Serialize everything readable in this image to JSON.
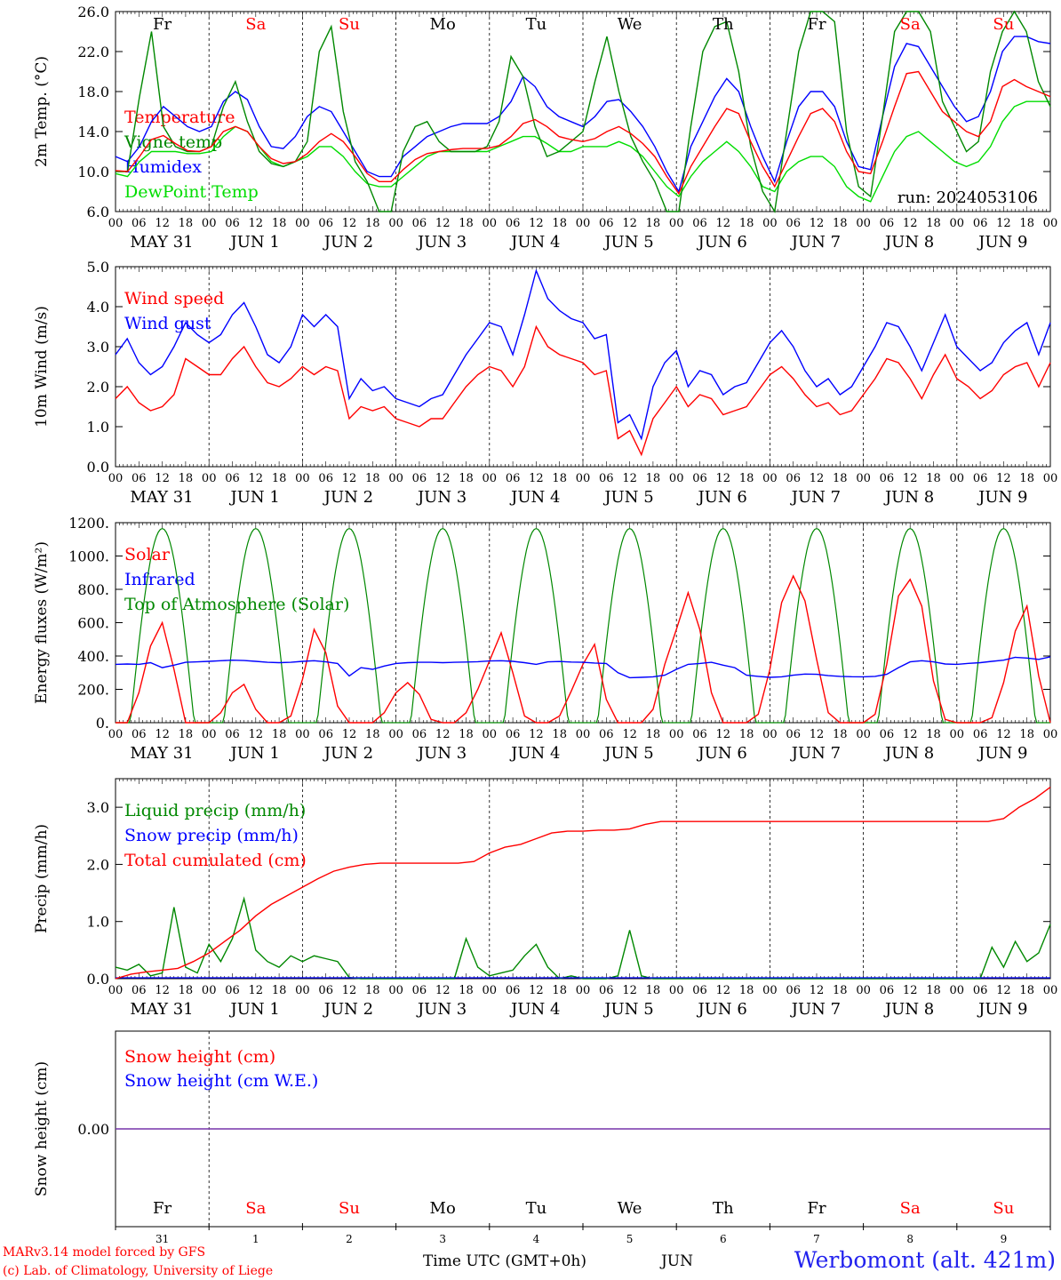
{
  "chart_data": [
    {
      "type": "line",
      "ylabel": "2m Temp. (°C)",
      "ylim": [
        6.0,
        26.0
      ],
      "yticks": [
        "6.0",
        "10.0",
        "14.0",
        "18.0",
        "22.0",
        "26.0"
      ],
      "day_labels": [
        "Fr",
        "Sa",
        "Su",
        "Mo",
        "Tu",
        "We",
        "Th",
        "Fr",
        "Sa",
        "Su"
      ],
      "annotation": "run: 2024053106",
      "series": [
        {
          "name": "Temperature",
          "color": "#ff0000",
          "values": [
            10.1,
            10.0,
            11.5,
            13.2,
            13.6,
            12.8,
            12.1,
            12.0,
            12.5,
            14.0,
            14.5,
            14.0,
            12.5,
            11.3,
            10.8,
            11.0,
            11.8,
            13.0,
            13.8,
            13.0,
            11.5,
            9.8,
            9.0,
            9.0,
            10.2,
            11.2,
            11.8,
            12.0,
            12.2,
            12.3,
            12.3,
            12.3,
            12.6,
            13.5,
            14.8,
            15.2,
            14.5,
            13.5,
            13.2,
            13.0,
            13.3,
            14.0,
            14.5,
            13.8,
            12.8,
            11.5,
            9.5,
            7.8,
            10.5,
            12.5,
            14.5,
            16.3,
            15.8,
            13.0,
            10.5,
            8.5,
            11.0,
            13.5,
            15.8,
            16.3,
            15.0,
            12.0,
            10.0,
            9.8,
            13.0,
            16.5,
            19.8,
            20.0,
            18.0,
            16.0,
            15.0,
            14.0,
            13.5,
            15.0,
            18.5,
            19.2,
            18.5,
            18.0,
            17.5
          ]
        },
        {
          "name": "Vigne temp",
          "color": "#008800",
          "values": [
            10.0,
            10.0,
            17.5,
            24.0,
            14.5,
            12.5,
            12.0,
            12.0,
            12.5,
            16.5,
            19.0,
            15.0,
            12.0,
            10.8,
            10.5,
            11.0,
            13.0,
            22.0,
            24.5,
            16.0,
            11.0,
            9.0,
            6.0,
            6.0,
            12.0,
            14.5,
            15.0,
            13.0,
            12.0,
            12.0,
            12.0,
            12.5,
            15.0,
            21.5,
            19.5,
            14.5,
            11.5,
            12.0,
            13.0,
            14.0,
            19.0,
            23.5,
            18.0,
            13.5,
            11.0,
            9.0,
            6.0,
            6.0,
            14.5,
            22.0,
            24.5,
            25.0,
            20.0,
            12.5,
            8.0,
            6.0,
            14.0,
            22.0,
            26.0,
            26.0,
            25.0,
            14.0,
            8.5,
            7.5,
            15.5,
            24.0,
            26.0,
            26.0,
            24.0,
            17.0,
            14.5,
            12.0,
            13.0,
            20.0,
            24.0,
            26.0,
            24.0,
            19.0,
            16.5
          ]
        },
        {
          "name": "Humidex",
          "color": "#0000ff",
          "values": [
            11.5,
            11.0,
            12.5,
            15.0,
            16.5,
            15.5,
            14.5,
            14.0,
            14.5,
            17.0,
            18.0,
            17.2,
            14.5,
            12.5,
            12.3,
            13.5,
            15.5,
            16.5,
            16.0,
            14.0,
            12.0,
            10.0,
            9.5,
            9.5,
            11.5,
            12.5,
            13.5,
            14.0,
            14.5,
            14.8,
            14.8,
            14.8,
            15.5,
            17.0,
            19.5,
            18.5,
            16.5,
            15.5,
            15.0,
            14.5,
            15.5,
            17.0,
            17.2,
            16.0,
            14.5,
            12.5,
            10.0,
            8.0,
            12.5,
            15.0,
            17.5,
            19.3,
            18.0,
            14.5,
            11.5,
            9.0,
            13.0,
            16.5,
            18.0,
            18.0,
            16.5,
            13.0,
            10.5,
            10.2,
            15.5,
            20.5,
            22.8,
            22.5,
            20.5,
            18.5,
            16.5,
            15.0,
            15.5,
            18.0,
            22.0,
            23.5,
            23.5,
            23.0,
            22.8
          ]
        },
        {
          "name": "DewPoint Temp",
          "color": "#00dd00",
          "values": [
            9.8,
            9.5,
            11.0,
            12.0,
            12.0,
            12.0,
            11.8,
            11.8,
            12.0,
            13.5,
            14.5,
            14.0,
            12.5,
            11.0,
            10.5,
            11.0,
            11.5,
            12.5,
            12.5,
            11.5,
            10.0,
            8.8,
            8.5,
            8.5,
            9.5,
            10.5,
            11.5,
            12.0,
            12.0,
            12.0,
            12.0,
            12.0,
            12.5,
            13.0,
            13.5,
            13.5,
            12.8,
            12.0,
            12.0,
            12.5,
            12.5,
            12.5,
            13.0,
            12.5,
            11.5,
            10.0,
            8.5,
            7.5,
            9.5,
            11.0,
            12.0,
            13.0,
            12.0,
            10.5,
            8.5,
            8.0,
            10.0,
            11.0,
            11.5,
            11.5,
            10.5,
            8.5,
            7.5,
            7.0,
            9.5,
            12.0,
            13.5,
            14.0,
            13.0,
            12.0,
            11.0,
            10.5,
            11.0,
            12.5,
            15.0,
            16.5,
            17.0,
            17.0,
            17.0
          ]
        }
      ]
    },
    {
      "type": "line",
      "ylabel": "10m Wind (m/s)",
      "ylim": [
        0.0,
        5.0
      ],
      "yticks": [
        "0.0",
        "1.0",
        "2.0",
        "3.0",
        "4.0",
        "5.0"
      ],
      "series": [
        {
          "name": "Wind speed",
          "color": "#ff0000",
          "values": [
            1.7,
            2.0,
            1.6,
            1.4,
            1.5,
            1.8,
            2.7,
            2.5,
            2.3,
            2.3,
            2.7,
            3.0,
            2.5,
            2.1,
            2.0,
            2.2,
            2.5,
            2.3,
            2.5,
            2.4,
            1.2,
            1.5,
            1.4,
            1.5,
            1.2,
            1.1,
            1.0,
            1.2,
            1.2,
            1.6,
            2.0,
            2.3,
            2.5,
            2.4,
            2.0,
            2.5,
            3.5,
            3.0,
            2.8,
            2.7,
            2.6,
            2.3,
            2.4,
            0.7,
            0.9,
            0.3,
            1.2,
            1.6,
            2.0,
            1.5,
            1.8,
            1.7,
            1.3,
            1.4,
            1.5,
            1.9,
            2.3,
            2.5,
            2.2,
            1.8,
            1.5,
            1.6,
            1.3,
            1.4,
            1.8,
            2.2,
            2.7,
            2.6,
            2.2,
            1.7,
            2.3,
            2.8,
            2.2,
            2.0,
            1.7,
            1.9,
            2.3,
            2.5,
            2.6,
            2.0,
            2.6
          ]
        },
        {
          "name": "Wind gust",
          "color": "#0000ff",
          "values": [
            2.8,
            3.2,
            2.6,
            2.3,
            2.5,
            3.0,
            3.6,
            3.3,
            3.1,
            3.3,
            3.8,
            4.1,
            3.5,
            2.8,
            2.6,
            3.0,
            3.8,
            3.5,
            3.8,
            3.5,
            1.7,
            2.2,
            1.9,
            2.0,
            1.7,
            1.6,
            1.5,
            1.7,
            1.8,
            2.3,
            2.8,
            3.2,
            3.6,
            3.5,
            2.8,
            3.8,
            4.9,
            4.2,
            3.9,
            3.7,
            3.6,
            3.2,
            3.3,
            1.1,
            1.3,
            0.7,
            2.0,
            2.6,
            2.9,
            2.0,
            2.4,
            2.3,
            1.8,
            2.0,
            2.1,
            2.6,
            3.1,
            3.4,
            3.0,
            2.4,
            2.0,
            2.2,
            1.8,
            2.0,
            2.5,
            3.0,
            3.6,
            3.5,
            3.0,
            2.4,
            3.1,
            3.8,
            3.0,
            2.7,
            2.4,
            2.6,
            3.1,
            3.4,
            3.6,
            2.8,
            3.6
          ]
        }
      ]
    },
    {
      "type": "line",
      "ylabel": "Energy fluxes (W/m²)",
      "ylim": [
        0,
        1200
      ],
      "yticks": [
        "0.",
        "200.",
        "400.",
        "600.",
        "800.",
        "1000.",
        "1200."
      ],
      "series": [
        {
          "name": "Solar",
          "color": "#ff0000",
          "values": [
            0,
            0,
            180,
            460,
            600,
            320,
            0,
            0,
            0,
            60,
            180,
            230,
            80,
            0,
            0,
            40,
            260,
            560,
            420,
            100,
            0,
            0,
            0,
            60,
            180,
            240,
            170,
            20,
            0,
            0,
            60,
            200,
            370,
            540,
            300,
            40,
            0,
            0,
            40,
            190,
            350,
            470,
            140,
            0,
            0,
            0,
            80,
            350,
            560,
            780,
            560,
            180,
            0,
            0,
            0,
            50,
            320,
            720,
            880,
            730,
            380,
            60,
            0,
            0,
            0,
            50,
            350,
            760,
            860,
            700,
            250,
            20,
            0,
            0,
            0,
            30,
            240,
            550,
            700,
            280,
            0
          ]
        },
        {
          "name": "Infrared",
          "color": "#0000ff",
          "values": [
            350,
            352,
            350,
            360,
            330,
            345,
            362,
            365,
            368,
            372,
            375,
            373,
            368,
            362,
            360,
            362,
            368,
            372,
            365,
            355,
            280,
            330,
            320,
            340,
            355,
            360,
            362,
            362,
            360,
            362,
            364,
            366,
            370,
            372,
            368,
            360,
            350,
            365,
            367,
            364,
            362,
            358,
            355,
            300,
            270,
            272,
            275,
            285,
            320,
            350,
            355,
            362,
            345,
            330,
            285,
            278,
            272,
            275,
            285,
            292,
            290,
            282,
            278,
            276,
            275,
            278,
            290,
            330,
            365,
            372,
            365,
            352,
            350,
            356,
            360,
            368,
            375,
            392,
            388,
            380,
            395
          ]
        },
        {
          "name": "Top of Atmosphere (Solar)",
          "color": "#008800"
        }
      ]
    },
    {
      "type": "line",
      "ylabel": "Precip (mm/h)",
      "ylim": [
        0.0,
        3.5
      ],
      "yticks": [
        "0.0",
        "1.0",
        "2.0",
        "3.0"
      ],
      "series": [
        {
          "name": "Liquid precip (mm/h)",
          "color": "#008800",
          "values": [
            0.2,
            0.15,
            0.25,
            0.05,
            0.1,
            1.25,
            0.2,
            0.1,
            0.6,
            0.3,
            0.7,
            1.4,
            0.5,
            0.3,
            0.2,
            0.4,
            0.3,
            0.4,
            0.35,
            0.3,
            0.02,
            0.0,
            0.0,
            0.0,
            0.0,
            0.0,
            0.0,
            0.0,
            0.0,
            0.0,
            0.7,
            0.2,
            0.05,
            0.1,
            0.15,
            0.4,
            0.6,
            0.2,
            0.0,
            0.05,
            0.0,
            0.0,
            0.0,
            0.05,
            0.85,
            0.05,
            0.0,
            0.0,
            0.0,
            0.0,
            0.0,
            0.0,
            0.0,
            0.0,
            0.0,
            0.0,
            0.0,
            0.0,
            0.0,
            0.0,
            0.0,
            0.0,
            0.0,
            0.0,
            0.0,
            0.0,
            0.0,
            0.0,
            0.0,
            0.0,
            0.0,
            0.0,
            0.0,
            0.0,
            0.0,
            0.55,
            0.2,
            0.65,
            0.3,
            0.45,
            0.95
          ]
        },
        {
          "name": "Snow precip (mm/h)",
          "color": "#0000ff",
          "values": [
            0.0
          ]
        },
        {
          "name": "Total cumulated (cm)",
          "color": "#ff0000",
          "values": [
            0.0,
            0.08,
            0.12,
            0.15,
            0.18,
            0.3,
            0.45,
            0.65,
            0.85,
            1.1,
            1.3,
            1.45,
            1.6,
            1.75,
            1.88,
            1.95,
            2.0,
            2.02,
            2.02,
            2.02,
            2.02,
            2.02,
            2.02,
            2.05,
            2.2,
            2.3,
            2.35,
            2.45,
            2.55,
            2.58,
            2.58,
            2.6,
            2.6,
            2.62,
            2.7,
            2.75,
            2.75,
            2.75,
            2.75,
            2.75,
            2.75,
            2.75,
            2.75,
            2.75,
            2.75,
            2.75,
            2.75,
            2.75,
            2.75,
            2.75,
            2.75,
            2.75,
            2.75,
            2.75,
            2.75,
            2.75,
            2.75,
            2.8,
            3.0,
            3.15,
            3.35
          ]
        }
      ]
    },
    {
      "type": "line",
      "ylabel": "Snow height (cm)",
      "ylim": [
        -1,
        1
      ],
      "yticks": [
        "0.00"
      ],
      "series": [
        {
          "name": "Snow height (cm)",
          "color": "#ff0000",
          "values": [
            0.0
          ]
        },
        {
          "name": "Snow height (cm W.E.)",
          "color": "#0000ff",
          "values": [
            0.0
          ]
        }
      ]
    }
  ],
  "x_axis": {
    "hour_labels": [
      "00",
      "06",
      "12",
      "18"
    ],
    "date_labels": [
      "MAY 31",
      "JUN  1",
      "JUN  2",
      "JUN  3",
      "JUN  4",
      "JUN  5",
      "JUN  6",
      "JUN  7",
      "JUN  8",
      "JUN  9"
    ],
    "bottom_day_labels": [
      "Fr",
      "Sa",
      "Su",
      "Mo",
      "Tu",
      "We",
      "Th",
      "Fr",
      "Sa",
      "Su"
    ],
    "bottom_date_numbers": [
      "31",
      "1",
      "2",
      "3",
      "4",
      "5",
      "6",
      "7",
      "8",
      "9"
    ],
    "weekend_days": [
      1,
      2,
      8,
      9
    ],
    "xlabel": "Time UTC (GMT+0h)",
    "month_label": "JUN"
  },
  "footer": {
    "credit_line1": "MARv3.14 model forced by GFS",
    "credit_line2": "(c) Lab. of Climatology, University of Liege",
    "station": "Werbomont (alt. 421m)"
  },
  "colors": {
    "red": "#ff0000",
    "green": "#008800",
    "blue": "#0000ff",
    "light_green": "#00dd00",
    "purple": "#7733aa"
  }
}
